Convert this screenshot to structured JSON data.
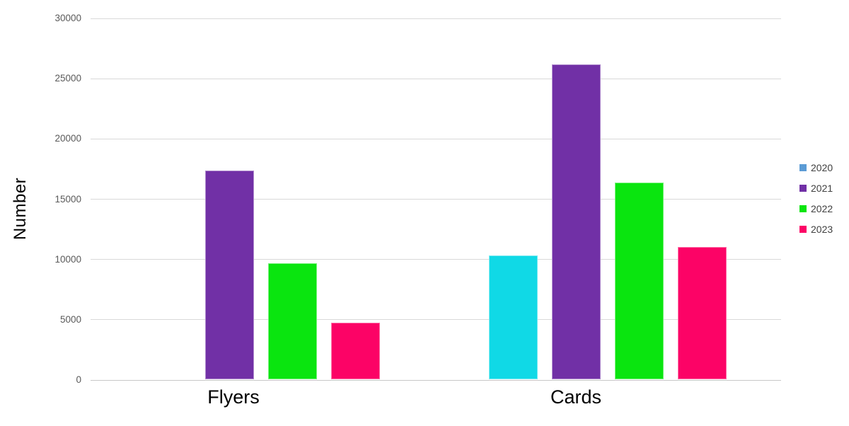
{
  "chart_data": {
    "type": "bar",
    "title": "",
    "xlabel": "",
    "ylabel": "Number",
    "categories": [
      "Flyers",
      "Cards"
    ],
    "series": [
      {
        "name": "2020",
        "legend_color": "#5B9BD5",
        "bar_color": "#10D9E6",
        "values": [
          0,
          10300
        ]
      },
      {
        "name": "2021",
        "legend_color": "#7130A6",
        "bar_color": "#7130A6",
        "values": [
          17300,
          26100
        ]
      },
      {
        "name": "2022",
        "legend_color": "#0AE50F",
        "bar_color": "#0AE50F",
        "values": [
          9600,
          16300
        ]
      },
      {
        "name": "2023",
        "legend_color": "#FC0366",
        "bar_color": "#FC0366",
        "values": [
          4700,
          11000
        ]
      }
    ],
    "ylim": [
      0,
      30000
    ],
    "yticks": [
      0,
      5000,
      10000,
      15000,
      20000,
      25000,
      30000
    ],
    "grid": true,
    "legend_position": "right",
    "background": "#FFFFFF",
    "gridline_color": "#D9D9D9"
  }
}
